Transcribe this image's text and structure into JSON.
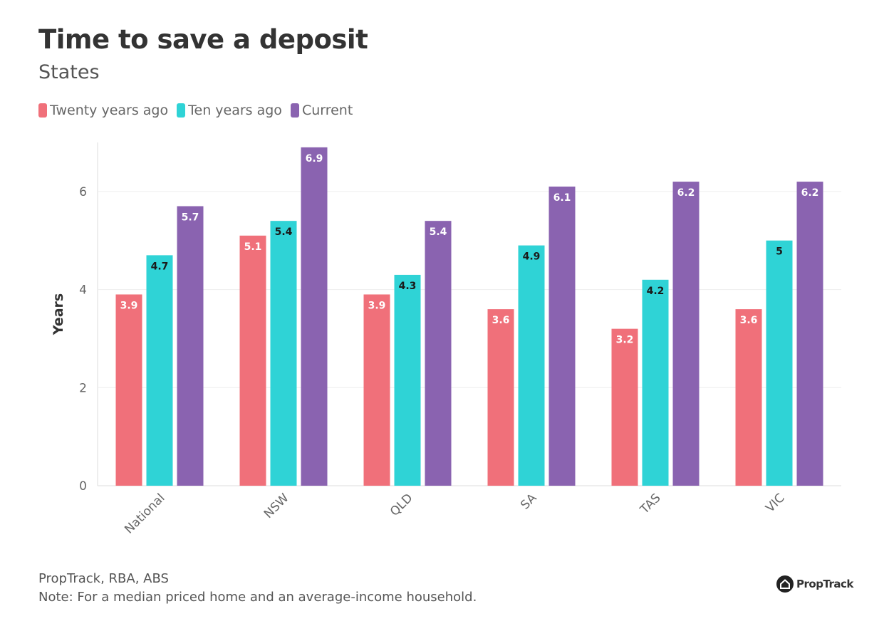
{
  "chart_data": {
    "type": "bar",
    "title": "Time to save a deposit",
    "subtitle": "States",
    "xlabel": "",
    "ylabel": "Years",
    "ylim": [
      0,
      7
    ],
    "yticks": [
      0,
      2,
      4,
      6
    ],
    "grid": true,
    "legend_placement": "top-left",
    "categories": [
      "National",
      "NSW",
      "QLD",
      "SA",
      "TAS",
      "VIC"
    ],
    "series": [
      {
        "name": "Twenty years ago",
        "color": "#f0707a",
        "label_color": "#ffffff",
        "values": [
          3.9,
          5.1,
          3.9,
          3.6,
          3.2,
          3.6
        ]
      },
      {
        "name": "Ten years ago",
        "color": "#2fd3d6",
        "label_color": "#1a1a1a",
        "values": [
          4.7,
          5.4,
          4.3,
          4.9,
          4.2,
          5
        ]
      },
      {
        "name": "Current",
        "color": "#8a63b0",
        "label_color": "#ffffff",
        "values": [
          5.7,
          6.9,
          5.4,
          6.1,
          6.2,
          6.2
        ]
      }
    ]
  },
  "footer": {
    "source": "PropTrack, RBA, ABS",
    "note": "Note: For a median priced home and an average-income household.",
    "logo": "PropTrack"
  }
}
